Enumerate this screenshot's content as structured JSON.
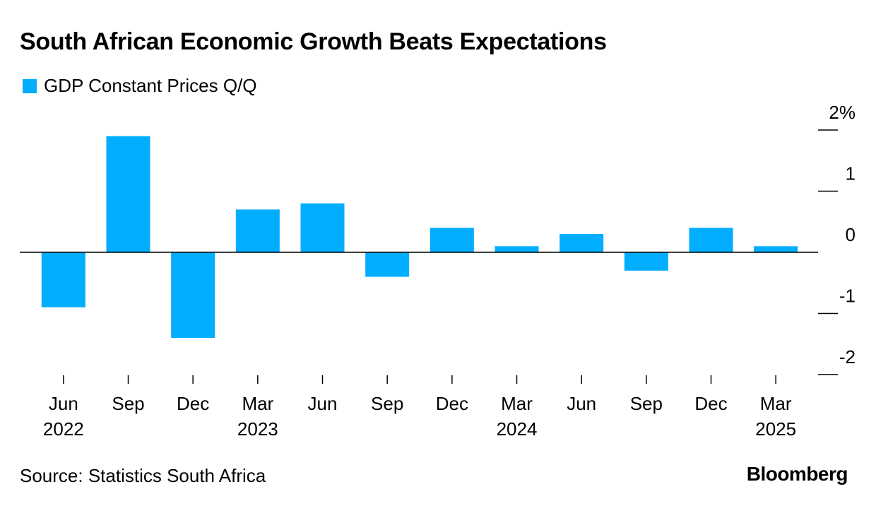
{
  "title": "South African Economic Growth Beats Expectations",
  "source": "Source: Statistics South Africa",
  "logo": "Bloomberg",
  "colors": {
    "bar": "#00adff",
    "axis": "#000000"
  },
  "chart_data": {
    "type": "bar",
    "title": "South African Economic Growth Beats Expectations",
    "categories": [
      "Jun 2022",
      "Sep 2022",
      "Dec 2022",
      "Mar 2023",
      "Jun 2023",
      "Sep 2023",
      "Dec 2023",
      "Mar 2024",
      "Jun 2024",
      "Sep 2024",
      "Dec 2024",
      "Mar 2025"
    ],
    "x_tick_labels": [
      "Jun",
      "Sep",
      "Dec",
      "Mar",
      "Jun",
      "Sep",
      "Dec",
      "Mar",
      "Jun",
      "Sep",
      "Dec",
      "Mar"
    ],
    "year_labels": [
      {
        "category_index": 0,
        "label": "2022"
      },
      {
        "category_index": 3,
        "label": "2023"
      },
      {
        "category_index": 7,
        "label": "2024"
      },
      {
        "category_index": 11,
        "label": "2025"
      }
    ],
    "series": [
      {
        "name": "GDP Constant Prices Q/Q",
        "values": [
          -0.9,
          1.9,
          -1.4,
          0.7,
          0.8,
          -0.4,
          0.4,
          0.1,
          0.3,
          -0.3,
          0.4,
          0.1
        ]
      }
    ],
    "y_ticks": [
      2,
      1,
      0,
      -1,
      -2
    ],
    "y_tick_labels": [
      "2%",
      "1",
      "0",
      "-1",
      "-2"
    ],
    "ylim": [
      -2,
      2
    ],
    "y_axis_side": "right",
    "legend_position": "top-left",
    "grid": false
  }
}
